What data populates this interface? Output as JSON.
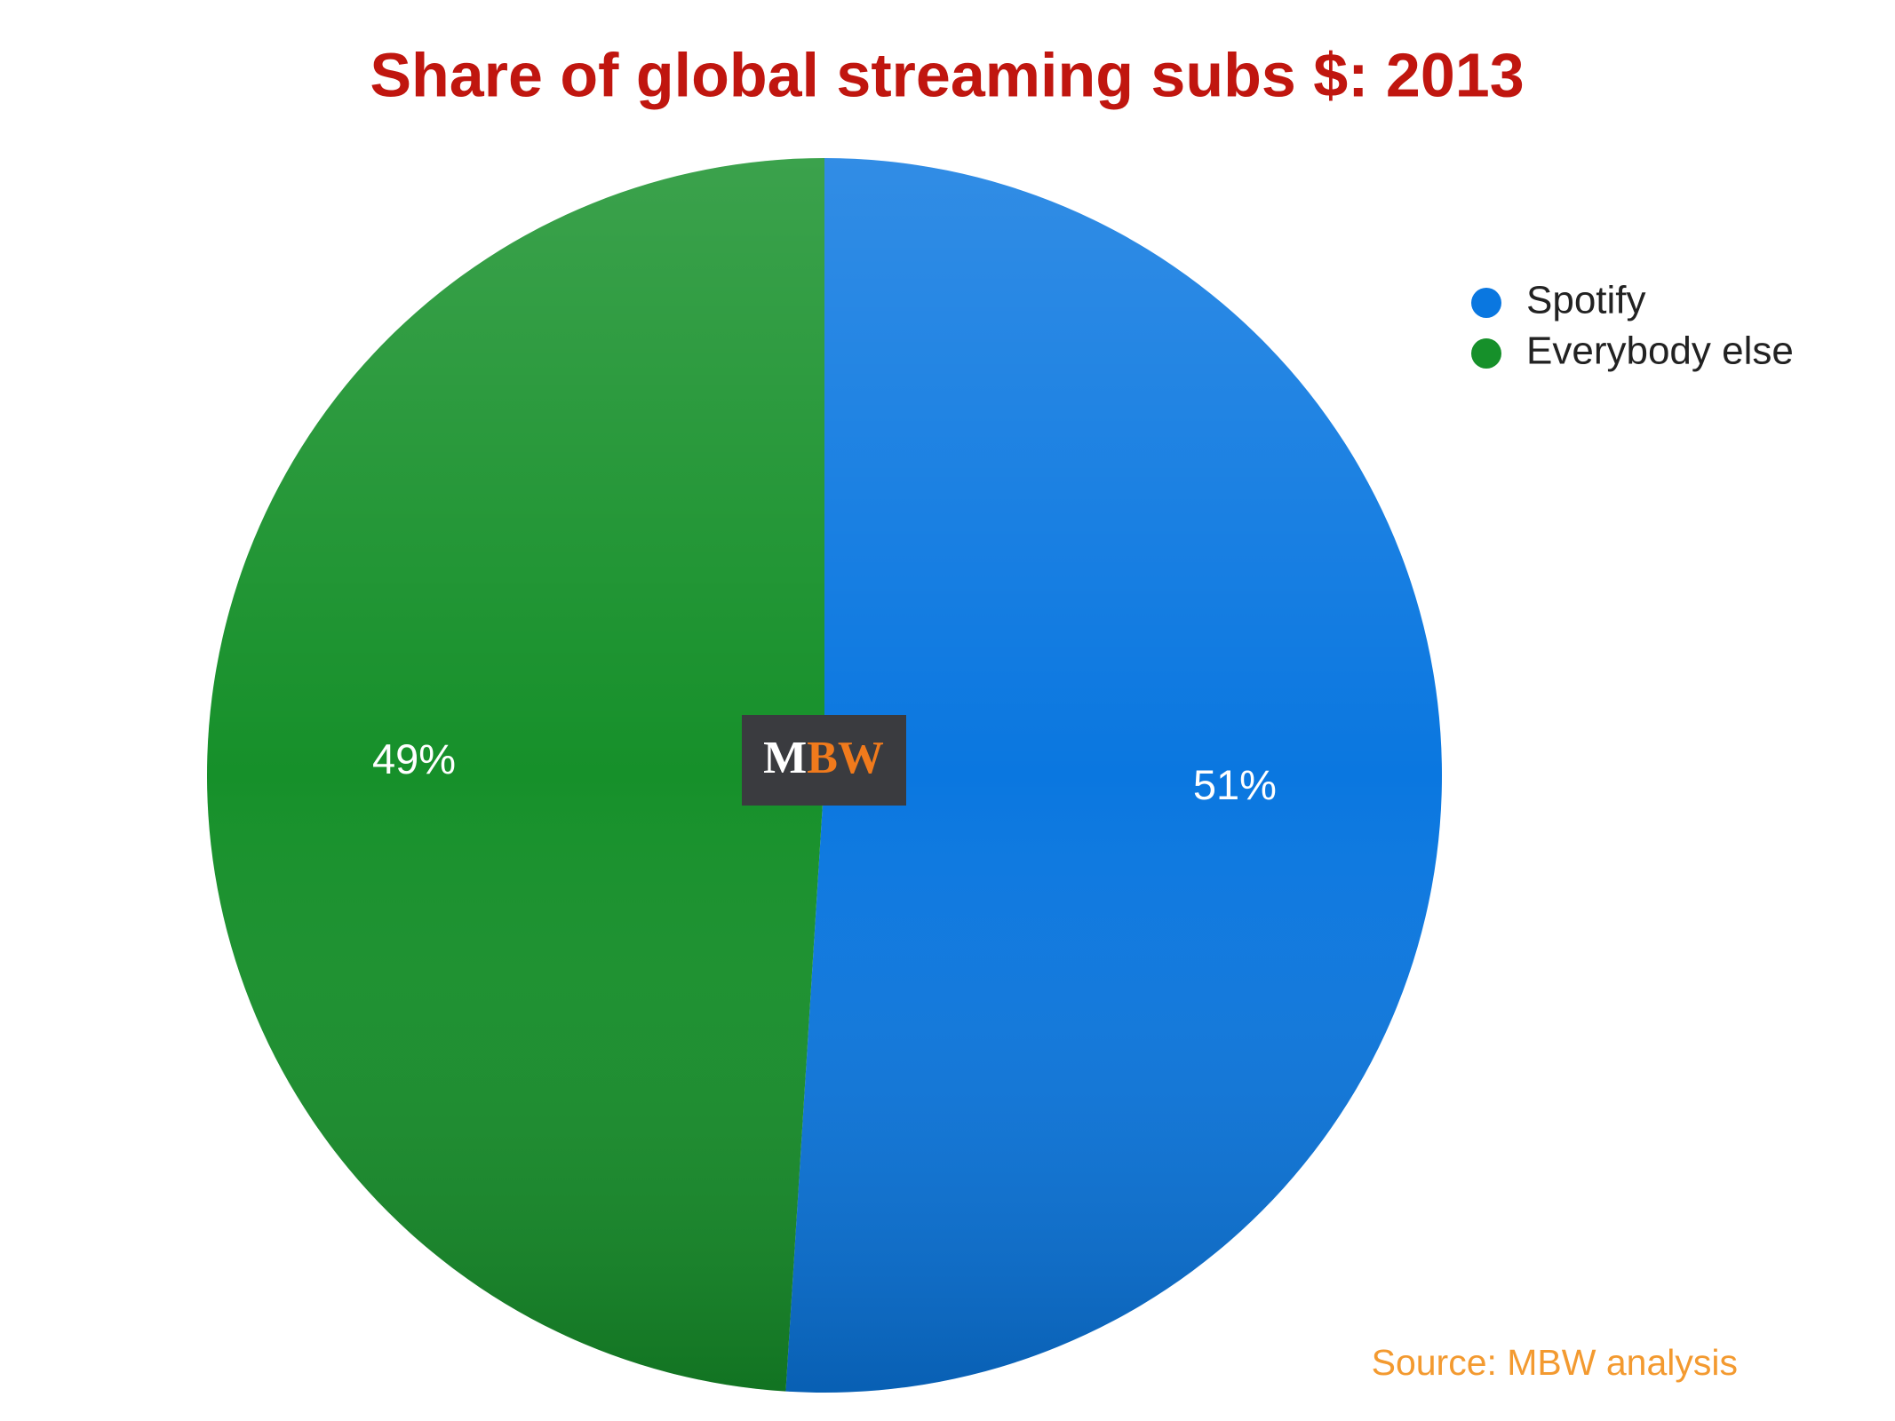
{
  "chart_data": {
    "type": "pie",
    "title": "Share of global streaming subs $: 2013",
    "categories": [
      "Spotify",
      "Everybody else"
    ],
    "values": [
      51,
      49
    ],
    "value_labels": [
      "51%",
      "49%"
    ],
    "colors": [
      "#0a77e0",
      "#16902a"
    ],
    "legend": "top-right",
    "source": "Source: MBW analysis",
    "logo": [
      "M",
      "BW"
    ]
  }
}
